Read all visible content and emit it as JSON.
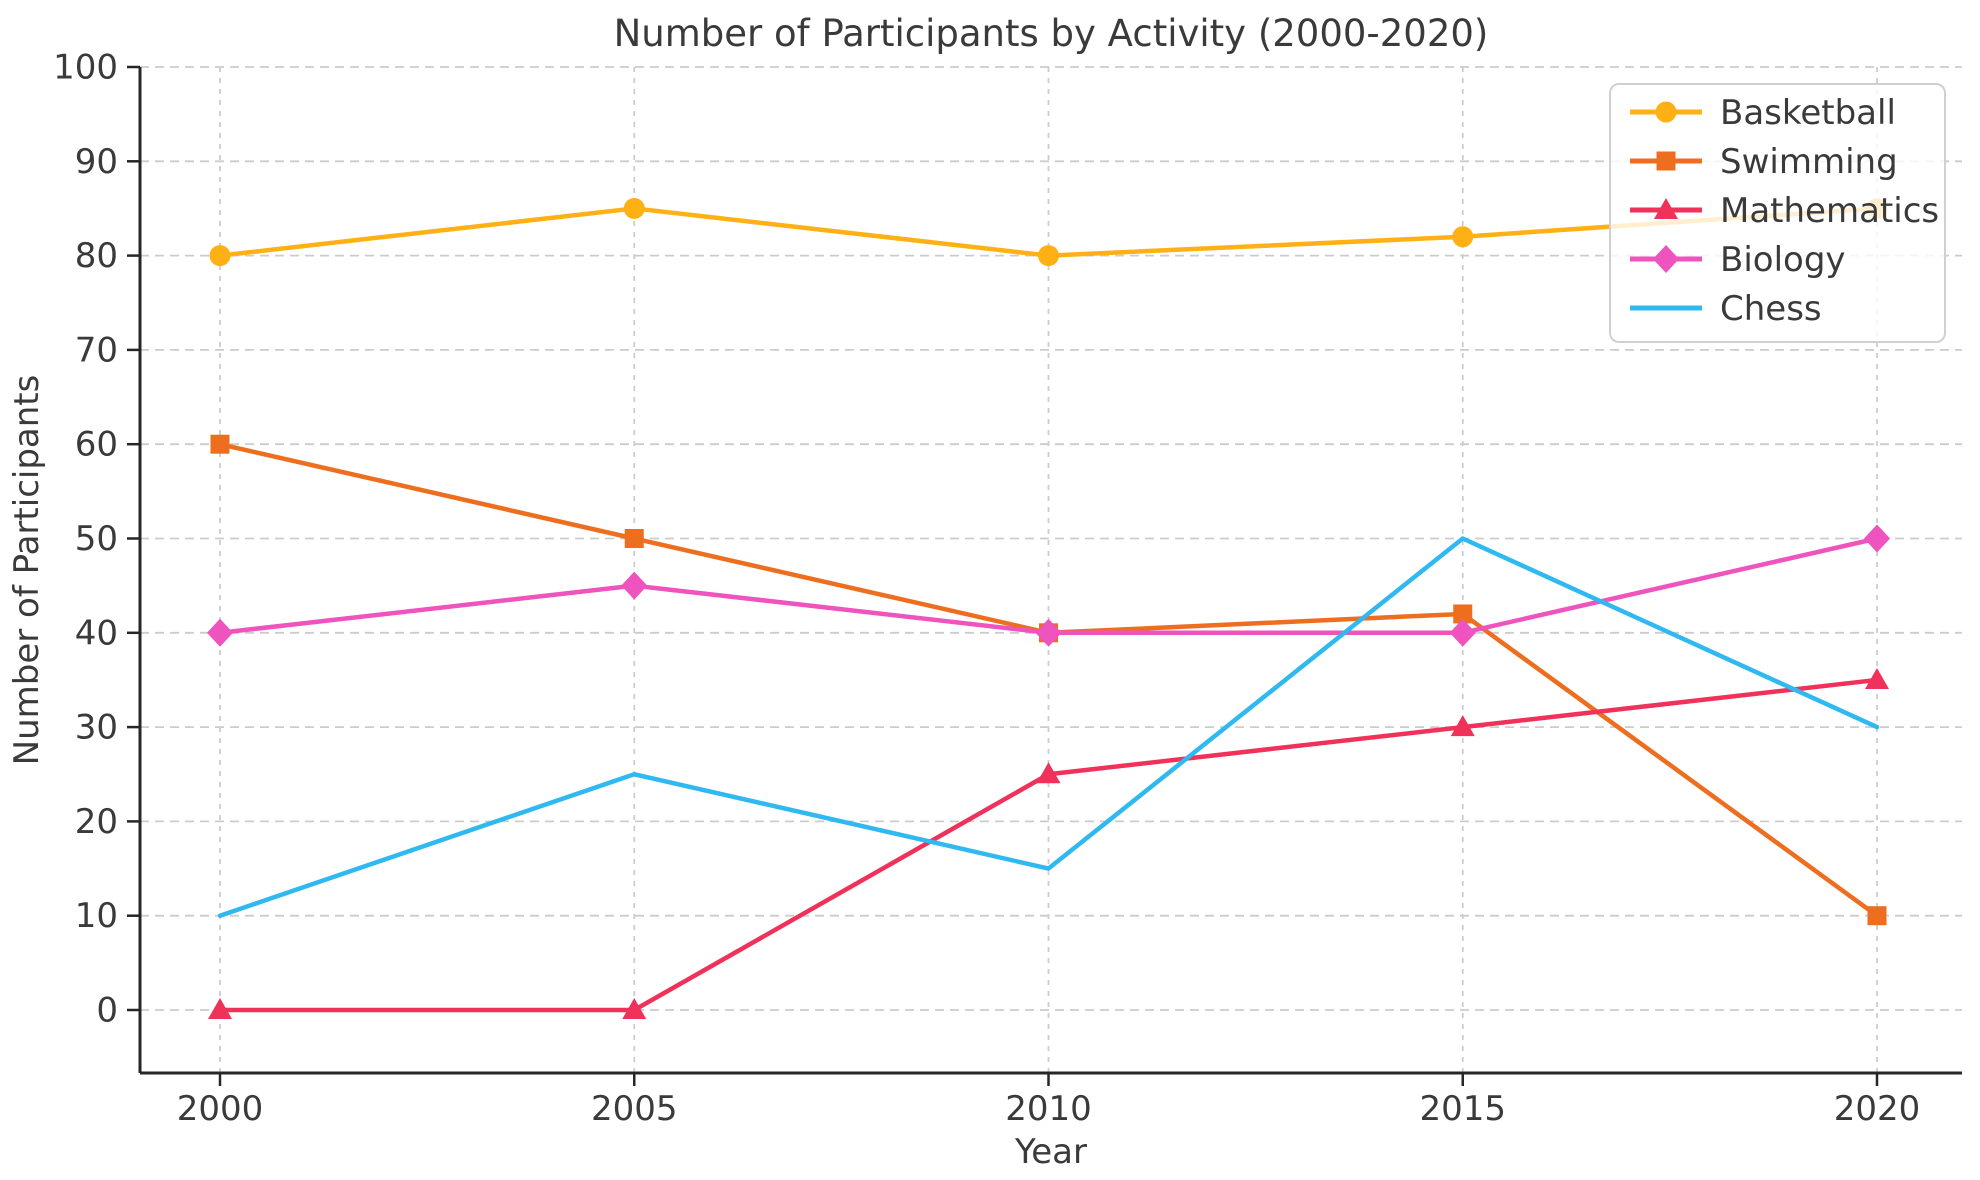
{
  "chart_data": {
    "type": "line",
    "title": "Number of Participants by Activity (2000-2020)",
    "xlabel": "Year",
    "ylabel": "Number of Participants",
    "x": [
      2000,
      2005,
      2010,
      2015,
      2020
    ],
    "xtick_labels": [
      "2000",
      "2005",
      "2010",
      "2015",
      "2020"
    ],
    "yticks": [
      0,
      10,
      20,
      30,
      40,
      50,
      60,
      70,
      80,
      90,
      100
    ],
    "ytick_labels": [
      "0",
      "10",
      "20",
      "30",
      "40",
      "50",
      "60",
      "70",
      "80",
      "90",
      "100"
    ],
    "ylim": [
      0,
      100
    ],
    "grid": true,
    "grid_style": "dashed",
    "legend_position": "upper right",
    "series": [
      {
        "name": "Basketball",
        "color": "#FFB014",
        "marker": "circle",
        "values": [
          80,
          85,
          80,
          82,
          85
        ]
      },
      {
        "name": "Swimming",
        "color": "#ED6E1E",
        "marker": "square",
        "values": [
          60,
          50,
          40,
          42,
          10
        ]
      },
      {
        "name": "Mathematics",
        "color": "#F0325A",
        "marker": "triangle",
        "values": [
          0,
          0,
          25,
          30,
          35
        ]
      },
      {
        "name": "Biology",
        "color": "#EE53BE",
        "marker": "diamond",
        "values": [
          40,
          45,
          40,
          40,
          50
        ]
      },
      {
        "name": "Chess",
        "color": "#2FB9F0",
        "marker": "none",
        "values": [
          10,
          25,
          15,
          50,
          30
        ]
      }
    ],
    "colors": {
      "grid": "#cccccc",
      "axis": "#262626",
      "text": "#3a3a3a",
      "legend_border": "#d0d0d0",
      "legend_bg": "rgba(255,255,255,0.8)"
    }
  }
}
